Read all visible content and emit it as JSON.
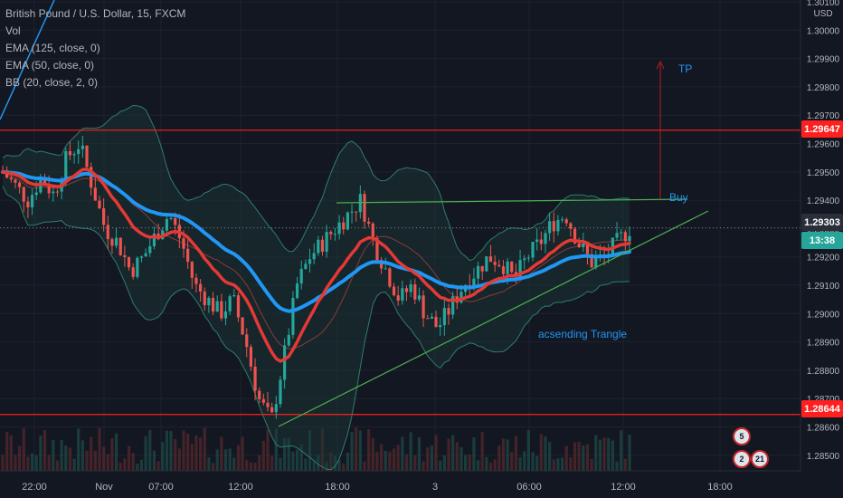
{
  "header": {
    "symbol": "British Pound / U.S. Dollar, 15, FXCM",
    "indicators": [
      "Vol",
      "EMA (125, close, 0)",
      "EMA (50, close, 0)",
      "BB (20, close, 2, 0)"
    ]
  },
  "price_axis": {
    "currency": "USD",
    "labels": [
      "1.30100",
      "1.30000",
      "1.29900",
      "1.29800",
      "1.29700",
      "1.29600",
      "1.29500",
      "1.29400",
      "1.29300",
      "1.29200",
      "1.29100",
      "1.29000",
      "1.28900",
      "1.28800",
      "1.28700",
      "1.28600",
      "1.28500"
    ]
  },
  "time_axis": {
    "labels": [
      "22:00",
      "Nov",
      "07:00",
      "12:00",
      "18:00",
      "3",
      "06:00",
      "12:00",
      "18:00"
    ]
  },
  "levels": {
    "resistance": "1.29647",
    "support": "1.28644",
    "current_price": "1.29303",
    "countdown": "13:38"
  },
  "annotations": {
    "tp": "TP",
    "buy": "Buy",
    "pattern": "acsending Trangle"
  },
  "events": {
    "top_count": "5",
    "bottom_count": "2",
    "bottom_count2": "21"
  },
  "colors": {
    "background": "#131722",
    "up": "#26a69a",
    "down": "#ef5350",
    "ema125": "#2196f3",
    "ema50": "#e53935",
    "bb": "#2e7d6b",
    "level_line": "#ff1f1f",
    "trendline": "#4caf50",
    "price_badge": "#2a2e39"
  },
  "chart_data": {
    "type": "candlestick",
    "symbol": "GBPUSD",
    "interval": "15",
    "ylim": [
      1.2844,
      1.301
    ],
    "x_ticks": [
      "22:00",
      "Nov",
      "07:00",
      "12:00",
      "18:00",
      "3",
      "06:00",
      "12:00",
      "18:00"
    ],
    "close_path": [
      1.295,
      1.2945,
      1.294,
      1.2948,
      1.2942,
      1.2955,
      1.296,
      1.2945,
      1.293,
      1.2925,
      1.2915,
      1.292,
      1.2928,
      1.2935,
      1.2925,
      1.291,
      1.2905,
      1.29,
      1.2905,
      1.289,
      1.287,
      1.2862,
      1.2885,
      1.291,
      1.292,
      1.2925,
      1.293,
      1.2935,
      1.294,
      1.2925,
      1.2915,
      1.2905,
      1.291,
      1.29,
      1.2895,
      1.2902,
      1.291,
      1.2915,
      1.292,
      1.2918,
      1.2912,
      1.292,
      1.2925,
      1.2932,
      1.2935,
      1.2925,
      1.2918,
      1.292,
      1.2925,
      1.293
    ],
    "levels": {
      "resistance": 1.29647,
      "support": 1.28644,
      "last": 1.29303
    }
  }
}
